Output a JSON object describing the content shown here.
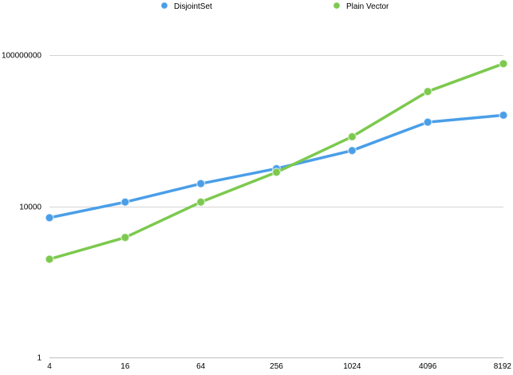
{
  "chart_data": {
    "type": "line",
    "title": "",
    "xlabel": "",
    "ylabel": "",
    "y_scale": "log",
    "ylim": [
      1,
      1000000000
    ],
    "grid": true,
    "legend_position": "top-center",
    "categories": [
      "4",
      "16",
      "64",
      "256",
      "1024",
      "4096",
      "8192"
    ],
    "y_ticks": [
      1,
      10000,
      100000000
    ],
    "y_tick_labels": [
      "1",
      "10000",
      "100000000"
    ],
    "series": [
      {
        "name": "DisjointSet",
        "color": "#4a9ee8",
        "values": [
          5000,
          13000,
          40000,
          100000,
          300000,
          1700000,
          2600000
        ]
      },
      {
        "name": "Plain Vector",
        "color": "#7cc94e",
        "values": [
          400,
          1500,
          13000,
          80000,
          700000,
          11000000,
          60000000
        ]
      }
    ]
  }
}
